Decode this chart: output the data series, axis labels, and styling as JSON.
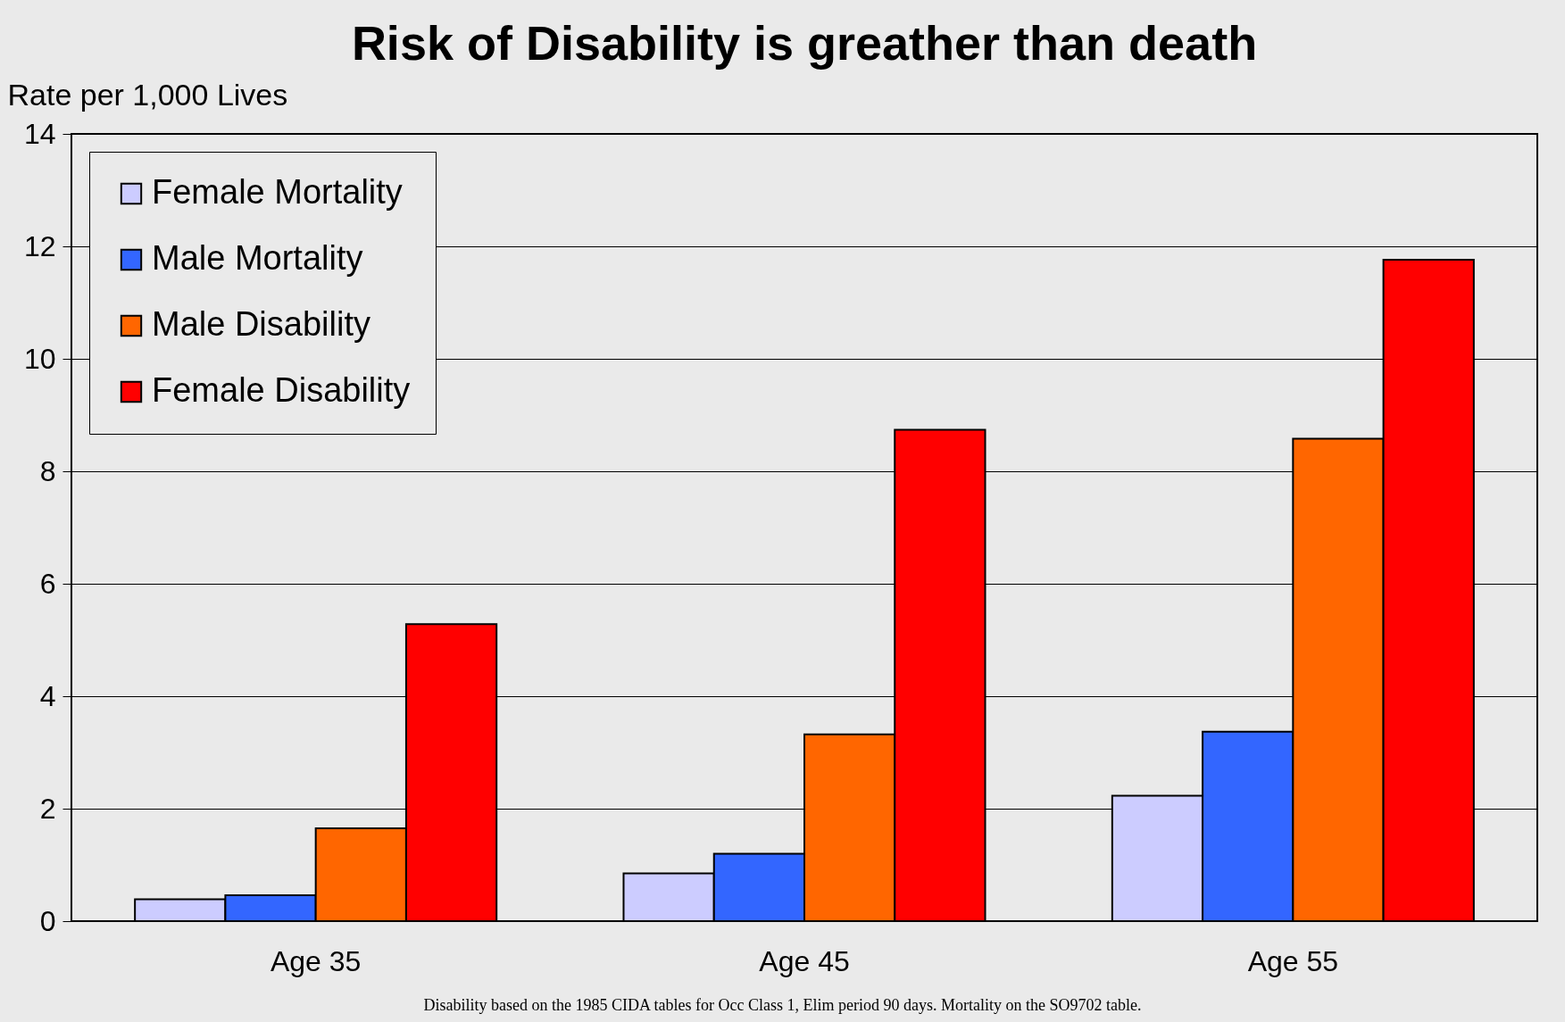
{
  "chart_data": {
    "type": "bar",
    "title": "Risk of Disability is greather than death",
    "ylabel": "Rate per 1,000 Lives",
    "categories": [
      "Age 35",
      "Age 45",
      "Age 55"
    ],
    "series": [
      {
        "name": "Female Mortality",
        "color": "#ccccff",
        "values": [
          0.39,
          0.85,
          2.23
        ]
      },
      {
        "name": "Male Mortality",
        "color": "#3366ff",
        "values": [
          0.46,
          1.2,
          3.37
        ]
      },
      {
        "name": "Male Disability",
        "color": "#ff6600",
        "values": [
          1.65,
          3.32,
          8.58
        ]
      },
      {
        "name": "Female Disability",
        "color": "#ff0000",
        "values": [
          5.28,
          8.74,
          11.76
        ]
      }
    ],
    "ylim": [
      0,
      14
    ],
    "yticks": [
      0,
      2,
      4,
      6,
      8,
      10,
      12,
      14
    ],
    "grid": "y",
    "legend": "top left",
    "annotations": [
      "Disability based on the 1985 CIDA tables for Occ Class 1, Elim period 90 days.  Mortality on the SO9702 table."
    ]
  }
}
